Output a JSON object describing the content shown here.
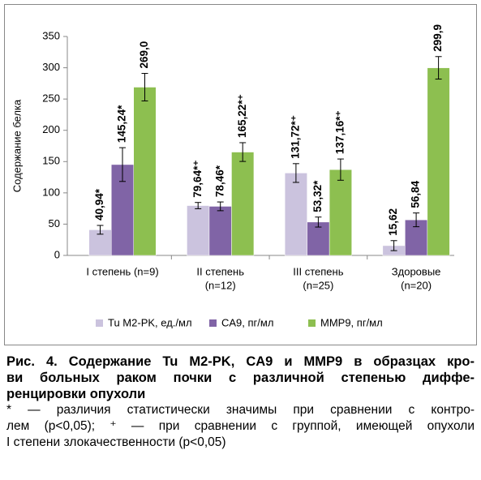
{
  "chart_data": {
    "type": "bar",
    "y_axis_label": "Содержание белка",
    "categories": [
      [
        "I степень (n=9)"
      ],
      [
        "II степень",
        "(n=12)"
      ],
      [
        "III степень",
        "(n=25)"
      ],
      [
        "Здоровые",
        "(n=20)"
      ]
    ],
    "series": [
      {
        "name": "Tu M2-PK, ед./мл",
        "color": "#cbc3de",
        "values": [
          40.94,
          79.64,
          131.72,
          15.62
        ],
        "errors": [
          7,
          5,
          15,
          8
        ],
        "value_labels": [
          "40,94*",
          "79,64*⁺",
          "131,72*⁺",
          "15,62"
        ]
      },
      {
        "name": "CA9, пг/мл",
        "color": "#8064a6",
        "values": [
          145.24,
          78.46,
          53.32,
          56.84
        ],
        "errors": [
          27,
          7,
          8,
          11
        ],
        "value_labels": [
          "145,24*",
          "78,46*",
          "53,32*",
          "56,84"
        ]
      },
      {
        "name": "MMP9, пг/мл",
        "color": "#8dbf50",
        "values": [
          269.0,
          165.22,
          137.16,
          299.9
        ],
        "errors": [
          22,
          15,
          17,
          18
        ],
        "value_labels": [
          "269,0",
          "165,22*⁺",
          "137,16*⁺",
          "299,9"
        ]
      }
    ],
    "ylim": [
      0,
      350
    ],
    "yticks": [
      0,
      50,
      100,
      150,
      200,
      250,
      300,
      350
    ],
    "grid": false,
    "legend": "bottom"
  },
  "caption": {
    "title_lines": [
      "Рис. 4. Содержание Tu M2-PK, CA9 и MMP9 в образцах кро-",
      "ви больных раком почки с различной степенью диффе-",
      "ренцировки опухоли"
    ],
    "note_lines": [
      "* — различия статистически значимы при сравнении с контро-",
      "лем (p<0,05); ⁺ — при сравнении с группой, имеющей опухоли",
      "I степени злокачественности (p<0,05)"
    ]
  }
}
